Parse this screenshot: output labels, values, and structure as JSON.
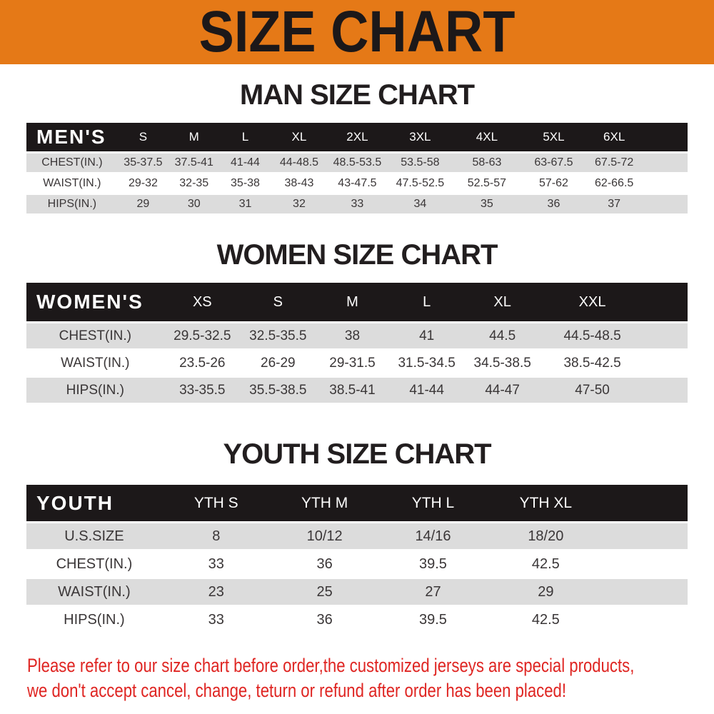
{
  "banner": {
    "title": "SIZE CHART"
  },
  "colors": {
    "banner_orange": "#E57917",
    "header_black": "#1C1819",
    "row_gray": "#DCDCDC",
    "note_red": "#DF2522"
  },
  "chart_data": [
    {
      "type": "table",
      "title": "MAN SIZE CHART",
      "columns": [
        "MEN'S",
        "S",
        "M",
        "L",
        "XL",
        "2XL",
        "3XL",
        "4XL",
        "5XL",
        "6XL"
      ],
      "rows": [
        [
          "CHEST(IN.)",
          "35-37.5",
          "37.5-41",
          "41-44",
          "44-48.5",
          "48.5-53.5",
          "53.5-58",
          "58-63",
          "63-67.5",
          "67.5-72"
        ],
        [
          "WAIST(IN.)",
          "29-32",
          "32-35",
          "35-38",
          "38-43",
          "43-47.5",
          "47.5-52.5",
          "52.5-57",
          "57-62",
          "62-66.5"
        ],
        [
          "HIPS(IN.)",
          "29",
          "30",
          "31",
          "32",
          "33",
          "34",
          "35",
          "36",
          "37"
        ]
      ]
    },
    {
      "type": "table",
      "title": "WOMEN SIZE CHART",
      "columns": [
        "WOMEN'S",
        "XS",
        "S",
        "M",
        "L",
        "XL",
        "XXL"
      ],
      "rows": [
        [
          "CHEST(IN.)",
          "29.5-32.5",
          "32.5-35.5",
          "38",
          "41",
          "44.5",
          "44.5-48.5"
        ],
        [
          "WAIST(IN.)",
          "23.5-26",
          "26-29",
          "29-31.5",
          "31.5-34.5",
          "34.5-38.5",
          "38.5-42.5"
        ],
        [
          "HIPS(IN.)",
          "33-35.5",
          "35.5-38.5",
          "38.5-41",
          "41-44",
          "44-47",
          "47-50"
        ]
      ]
    },
    {
      "type": "table",
      "title": "YOUTH SIZE CHART",
      "columns": [
        "YOUTH",
        "YTH S",
        "YTH M",
        "YTH L",
        "YTH XL"
      ],
      "rows": [
        [
          "U.S.SIZE",
          "8",
          "10/12",
          "14/16",
          "18/20"
        ],
        [
          "CHEST(IN.)",
          "33",
          "36",
          "39.5",
          "42.5"
        ],
        [
          "WAIST(IN.)",
          "23",
          "25",
          "27",
          "29"
        ],
        [
          "HIPS(IN.)",
          "33",
          "36",
          "39.5",
          "42.5"
        ]
      ]
    }
  ],
  "note": {
    "line1": "Please refer to our size chart before order,the customized jerseys are special products,",
    "line2": "we don't accept cancel, change, teturn or refund after order has been placed!"
  }
}
